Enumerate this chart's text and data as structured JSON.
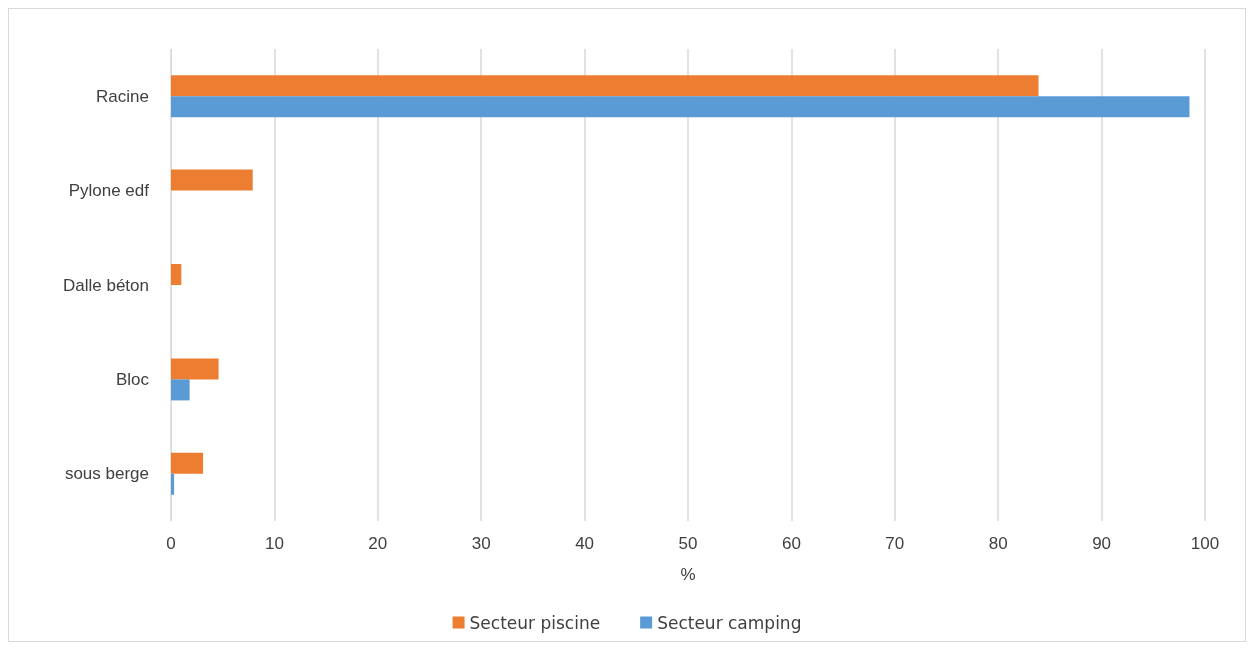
{
  "chart_data": {
    "type": "bar",
    "orientation": "horizontal",
    "categories": [
      "Racine",
      "Pylone edf",
      "Dalle béton",
      "Bloc",
      "sous berge"
    ],
    "series": [
      {
        "name": "Secteur piscine",
        "color": "#ed7d31",
        "values": [
          83.9,
          7.9,
          1.0,
          4.6,
          3.1
        ]
      },
      {
        "name": "Secteur camping",
        "color": "#5b9bd5",
        "values": [
          98.5,
          null,
          null,
          1.8,
          0.3
        ]
      }
    ],
    "xlabel": "%",
    "xlim": [
      0,
      100
    ],
    "xticks": [
      0,
      10,
      20,
      30,
      40,
      50,
      60,
      70,
      80,
      90,
      100
    ],
    "grid": "x",
    "legend": "bottom"
  }
}
